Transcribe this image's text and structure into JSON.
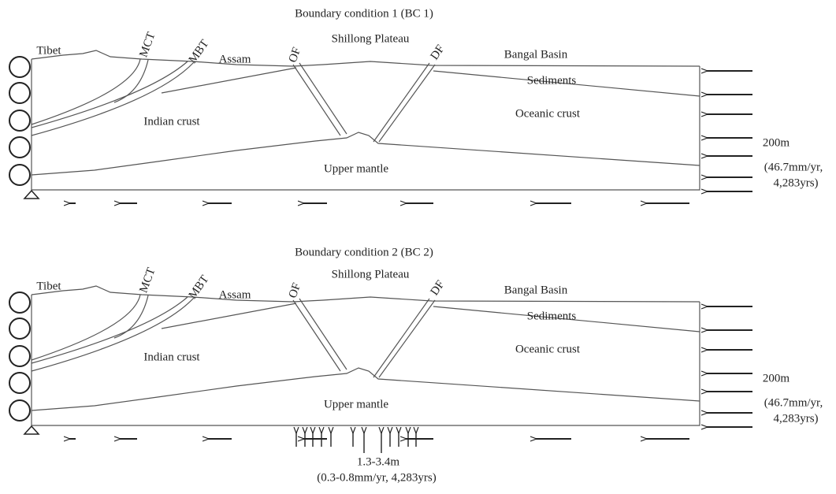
{
  "panels": [
    {
      "title": "Boundary condition 1 (BC 1)",
      "labels": {
        "tibet": "Tibet",
        "mct": "MCT",
        "mbt": "MBT",
        "assam": "Assam",
        "of": "OF",
        "shillong": "Shillong Plateau",
        "df": "DF",
        "bangal": "Bangal Basin",
        "sediments": "Sediments",
        "indian": "Indian crust",
        "oceanic": "Oceanic crust",
        "mantle": "Upper mantle",
        "disp": "200m",
        "rate1": "(46.7mm/yr,",
        "rate2": "4,283yrs)"
      }
    },
    {
      "title": "Boundary condition 2 (BC 2)",
      "labels": {
        "tibet": "Tibet",
        "mct": "MCT",
        "mbt": "MBT",
        "assam": "Assam",
        "of": "OF",
        "shillong": "Shillong Plateau",
        "df": "DF",
        "bangal": "Bangal Basin",
        "sediments": "Sediments",
        "indian": "Indian crust",
        "oceanic": "Oceanic crust",
        "mantle": "Upper mantle",
        "disp": "200m",
        "rate1": "(46.7mm/yr,",
        "rate2": "4,283yrs)",
        "uplift": "1.3-3.4m",
        "uplift_rate": "(0.3-0.8mm/yr, 4,283yrs)"
      }
    }
  ]
}
